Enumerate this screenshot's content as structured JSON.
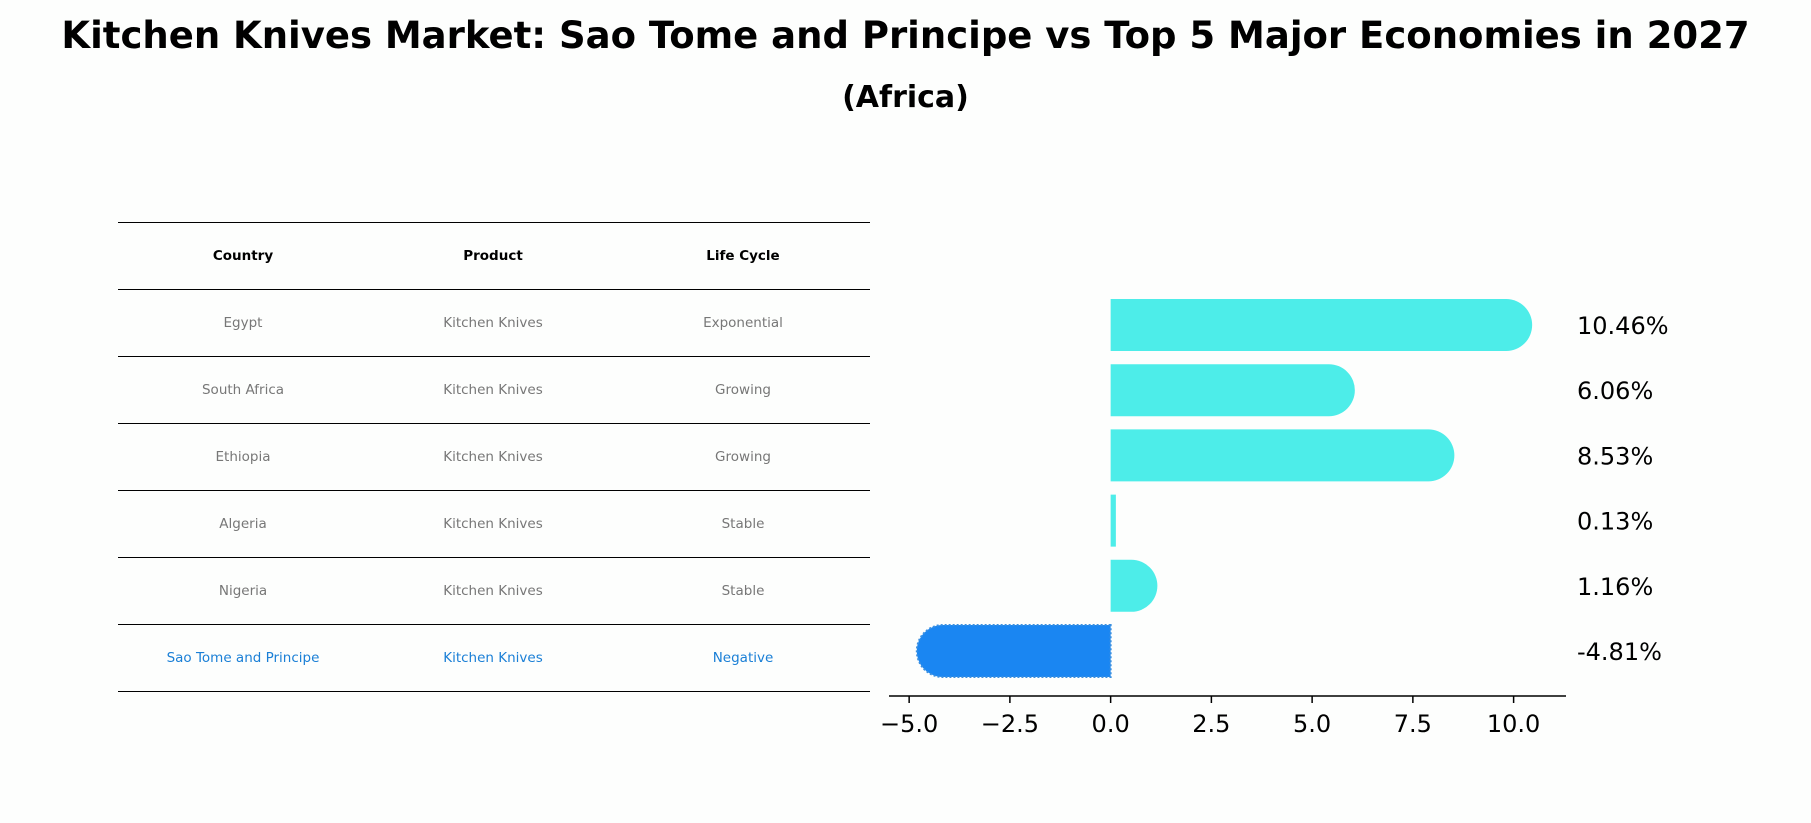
{
  "title": "Kitchen Knives Market: Sao Tome and Principe vs Top 5 Major Economies in 2027",
  "subtitle": "(Africa)",
  "table": {
    "headers": [
      "Country",
      "Product",
      "Life Cycle"
    ],
    "rows": [
      [
        "Egypt",
        "Kitchen Knives",
        "Exponential"
      ],
      [
        "South Africa",
        "Kitchen Knives",
        "Growing"
      ],
      [
        "Ethiopia",
        "Kitchen Knives",
        "Growing"
      ],
      [
        "Algeria",
        "Kitchen Knives",
        "Stable"
      ],
      [
        "Nigeria",
        "Kitchen Knives",
        "Stable"
      ],
      [
        "Sao Tome and Principe",
        "Kitchen Knives",
        "Negative"
      ]
    ]
  },
  "chart_data": {
    "type": "bar",
    "orientation": "horizontal",
    "categories": [
      "Egypt",
      "South Africa",
      "Ethiopia",
      "Algeria",
      "Nigeria",
      "Sao Tome and Principe"
    ],
    "values": [
      10.46,
      6.06,
      8.53,
      0.13,
      1.16,
      -4.81
    ],
    "value_labels": [
      "10.46%",
      "6.06%",
      "8.53%",
      "0.13%",
      "1.16%",
      "-4.81%"
    ],
    "xlim": [
      -5.5,
      11.3
    ],
    "xticks": [
      -5.0,
      -2.5,
      0.0,
      2.5,
      5.0,
      7.5,
      10.0
    ],
    "xtick_labels": [
      "−5.0",
      "−2.5",
      "0.0",
      "2.5",
      "5.0",
      "7.5",
      "10.0"
    ],
    "colors": {
      "default": "#4dede9",
      "highlight": "#1a86f2"
    },
    "highlight_index": 5
  }
}
